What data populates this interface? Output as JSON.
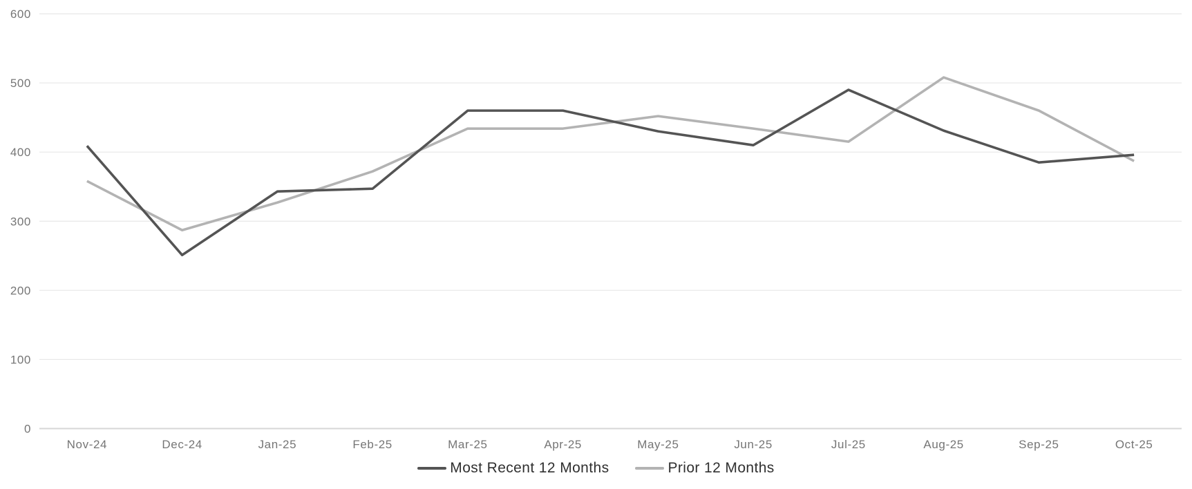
{
  "chart_data": {
    "type": "line",
    "title": "",
    "xlabel": "",
    "ylabel": "",
    "categories": [
      "Nov-24",
      "Dec-24",
      "Jan-25",
      "Feb-25",
      "Mar-25",
      "Apr-25",
      "May-25",
      "Jun-25",
      "Jul-25",
      "Aug-25",
      "Sep-25",
      "Oct-25"
    ],
    "series": [
      {
        "name": "Most Recent 12 Months",
        "color": "#545454",
        "values": [
          409,
          251,
          343,
          347,
          460,
          460,
          430,
          410,
          490,
          431,
          385,
          396
        ]
      },
      {
        "name": "Prior 12 Months",
        "color": "#b3b3b3",
        "values": [
          358,
          287,
          327,
          372,
          434,
          434,
          452,
          434,
          415,
          508,
          460,
          387
        ]
      }
    ],
    "ylim": [
      0,
      600
    ],
    "ytick_step": 100,
    "ytick_labels": [
      "0",
      "100",
      "200",
      "300",
      "400",
      "500",
      "600"
    ],
    "grid": true,
    "legend_position": "bottom-center"
  },
  "colors": {
    "background": "#ffffff",
    "gridline": "#e7e7e7",
    "axis_baseline": "#d7d7d7",
    "tick_label": "#757575",
    "legend_text": "#303030"
  }
}
